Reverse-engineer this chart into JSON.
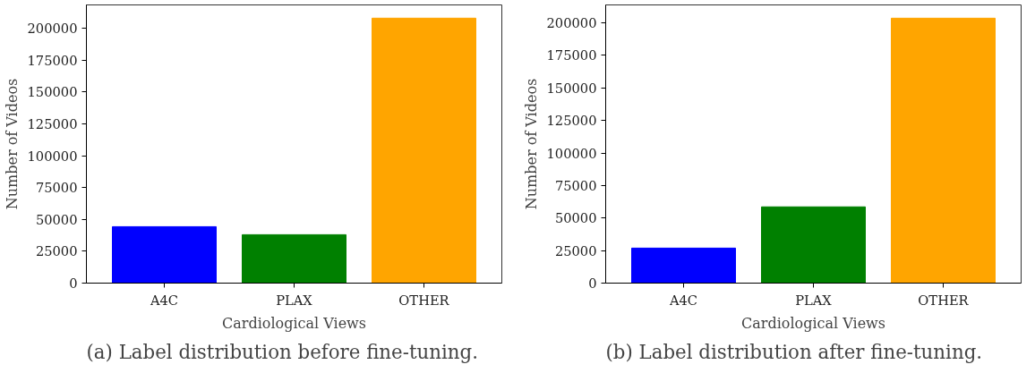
{
  "chart_data": [
    {
      "type": "bar",
      "categories": [
        "A4C",
        "PLAX",
        "OTHER"
      ],
      "values": [
        44300,
        38000,
        208000
      ],
      "colors": [
        "#0000ff",
        "#008000",
        "#ffa500"
      ],
      "xlabel": "Cardiological Views",
      "ylabel": "Number of Videos",
      "ylim": [
        0,
        218400
      ],
      "yticks": [
        0,
        25000,
        50000,
        75000,
        100000,
        125000,
        150000,
        175000,
        200000
      ],
      "grid": false,
      "annotations": [
        "(a) Label distribution before fine-tuning."
      ]
    },
    {
      "type": "bar",
      "categories": [
        "A4C",
        "PLAX",
        "OTHER"
      ],
      "values": [
        26900,
        58600,
        203600
      ],
      "colors": [
        "#0000ff",
        "#008000",
        "#ffa500"
      ],
      "xlabel": "Cardiological Views",
      "ylabel": "Number of Videos",
      "ylim": [
        0,
        213800
      ],
      "yticks": [
        0,
        25000,
        50000,
        75000,
        100000,
        125000,
        150000,
        175000,
        200000
      ],
      "grid": false,
      "annotations": [
        "(b) Label distribution after fine-tuning."
      ]
    }
  ]
}
